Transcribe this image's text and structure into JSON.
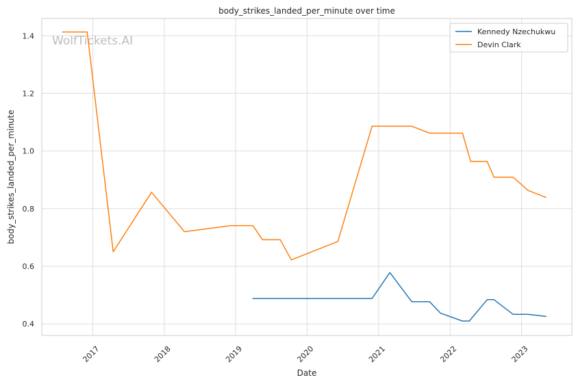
{
  "chart_data": {
    "type": "line",
    "title": "body_strikes_landed_per_minute over time",
    "xlabel": "Date",
    "ylabel": "body_strikes_landed_per_minute",
    "watermark": "WolfTickets.AI",
    "xlim": [
      "2016-04-15",
      "2023-09-15"
    ],
    "ylim": [
      0.36,
      1.46
    ],
    "x_ticks": [
      "2017-01-01",
      "2018-01-01",
      "2019-01-01",
      "2020-01-01",
      "2021-01-01",
      "2022-01-01",
      "2023-01-01"
    ],
    "x_tick_labels": [
      "2017",
      "2018",
      "2019",
      "2020",
      "2021",
      "2022",
      "2023"
    ],
    "y_ticks": [
      0.4,
      0.6,
      0.8,
      1.0,
      1.2,
      1.4
    ],
    "y_tick_labels": [
      "0.4",
      "0.6",
      "0.8",
      "1.0",
      "1.2",
      "1.4"
    ],
    "grid": true,
    "legend_position": "top-right",
    "series": [
      {
        "name": "Kennedy Nzechukwu",
        "color": "#1f77b4",
        "points": [
          [
            "2019-03-30",
            0.488
          ],
          [
            "2020-11-28",
            0.488
          ],
          [
            "2021-02-27",
            0.578
          ],
          [
            "2021-06-19",
            0.477
          ],
          [
            "2021-09-18",
            0.477
          ],
          [
            "2021-11-13",
            0.437
          ],
          [
            "2022-03-05",
            0.41
          ],
          [
            "2022-04-09",
            0.41
          ],
          [
            "2022-07-09",
            0.484
          ],
          [
            "2022-08-13",
            0.484
          ],
          [
            "2022-11-19",
            0.433
          ],
          [
            "2023-02-04",
            0.433
          ],
          [
            "2023-05-06",
            0.426
          ]
        ]
      },
      {
        "name": "Devin Clark",
        "color": "#ff7f0e",
        "points": [
          [
            "2016-07-30",
            1.413
          ],
          [
            "2016-12-03",
            1.413
          ],
          [
            "2017-04-15",
            0.65
          ],
          [
            "2017-10-28",
            0.857
          ],
          [
            "2018-04-14",
            0.72
          ],
          [
            "2018-12-08",
            0.741
          ],
          [
            "2019-03-30",
            0.741
          ],
          [
            "2019-05-18",
            0.692
          ],
          [
            "2019-08-17",
            0.692
          ],
          [
            "2019-10-12",
            0.622
          ],
          [
            "2020-06-06",
            0.686
          ],
          [
            "2020-11-28",
            1.086
          ],
          [
            "2021-06-19",
            1.086
          ],
          [
            "2021-09-18",
            1.062
          ],
          [
            "2022-03-05",
            1.062
          ],
          [
            "2022-04-16",
            0.964
          ],
          [
            "2022-07-09",
            0.964
          ],
          [
            "2022-08-13",
            0.909
          ],
          [
            "2022-11-19",
            0.909
          ],
          [
            "2023-02-04",
            0.863
          ],
          [
            "2023-05-06",
            0.839
          ]
        ]
      }
    ]
  }
}
